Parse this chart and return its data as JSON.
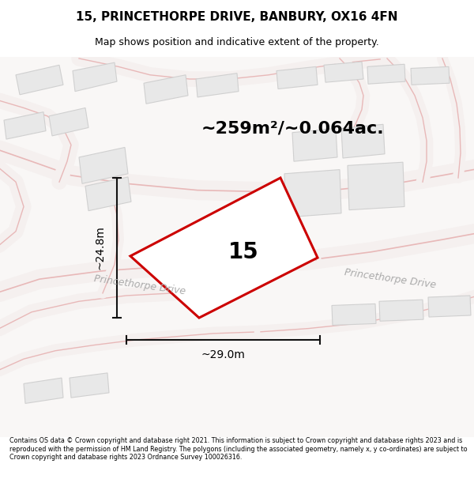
{
  "title_line1": "15, PRINCETHORPE DRIVE, BANBURY, OX16 4FN",
  "title_line2": "Map shows position and indicative extent of the property.",
  "area_text": "~259m²/~0.064ac.",
  "property_number": "15",
  "dim_width": "~29.0m",
  "dim_height": "~24.8m",
  "street_label_left": "Princethorpe Drive",
  "street_label_right": "Princethorpe Drive",
  "footer_text": "Contains OS data © Crown copyright and database right 2021. This information is subject to Crown copyright and database rights 2023 and is reproduced with the permission of HM Land Registry. The polygons (including the associated geometry, namely x, y co-ordinates) are subject to Crown copyright and database rights 2023 Ordnance Survey 100026316.",
  "bg_color": "#ffffff",
  "map_bg": "#f8f8f8",
  "road_pink": "#f5c0c0",
  "road_line": "#e8b8b8",
  "building_fill": "#e8e8e8",
  "building_edge": "#d0d0d0",
  "plot_color": "#cc0000",
  "plot_fill": "#ffffff",
  "plot_fill_alpha": 0.0,
  "dim_color": "#111111",
  "area_fontsize": 16,
  "title_fontsize": 11,
  "subtitle_fontsize": 9,
  "num_fontsize": 20,
  "dim_fontsize": 10,
  "street_fontsize": 9
}
